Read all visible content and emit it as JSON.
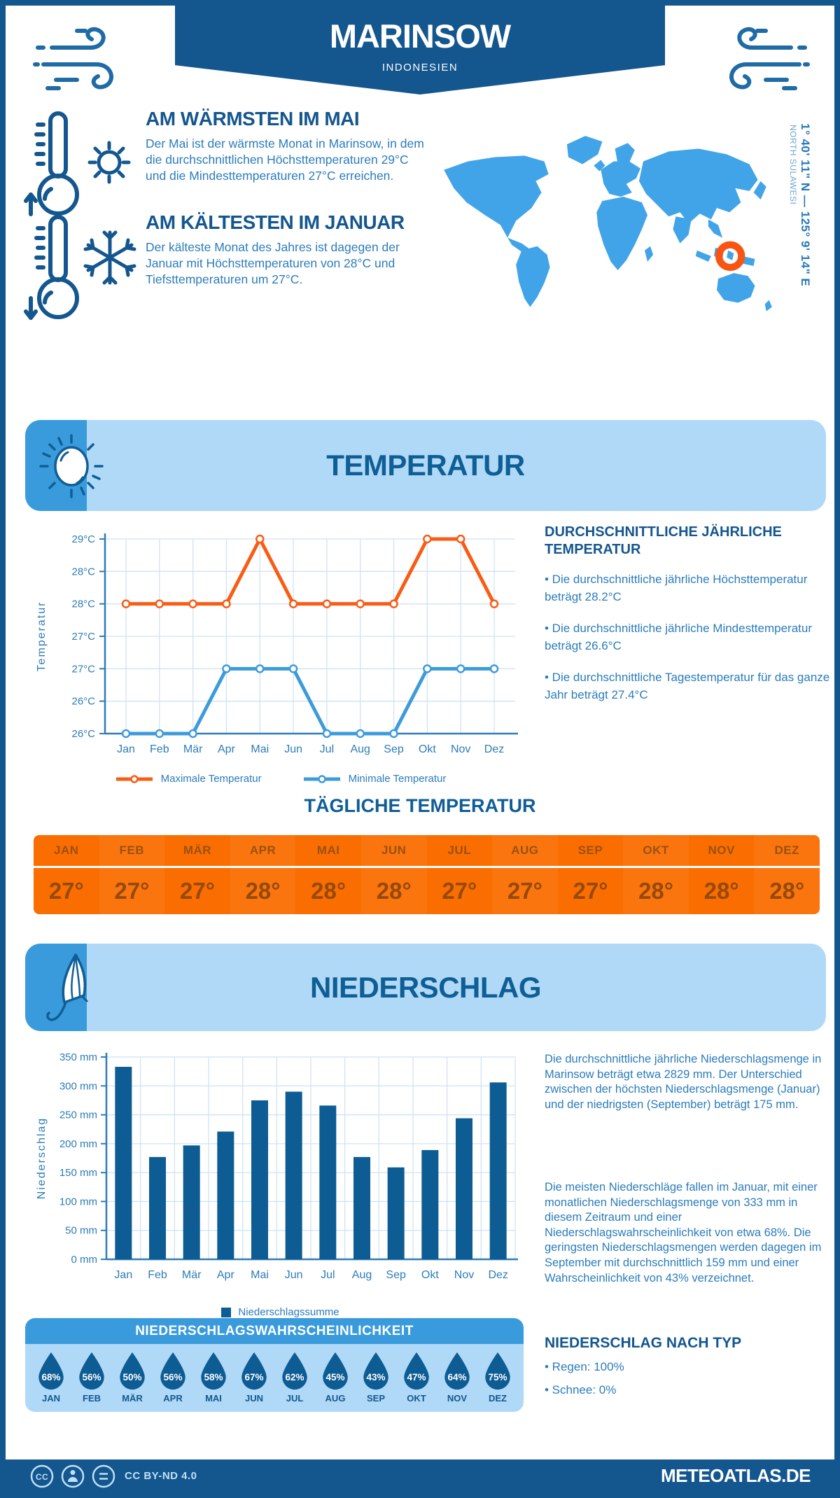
{
  "header": {
    "title": "MARINSOW",
    "subtitle": "INDONESIEN"
  },
  "warmest": {
    "heading": "AM WÄRMSTEN IM MAI",
    "text": "Der Mai ist der wärmste Monat in Marinsow, in dem die durchschnittlichen Höchsttemperaturen 29°C und die Mindesttemperaturen 27°C erreichen."
  },
  "coldest": {
    "heading": "AM KÄLTESTEN IM JANUAR",
    "text": "Der kälteste Monat des Jahres ist dagegen der Januar mit Höchsttemperaturen von 28°C und Tiefsttemperaturen um 27°C."
  },
  "map": {
    "coordinates": "1° 40' 11\" N — 125° 9' 14\" E",
    "region": "NORTH SULAWESI",
    "marker_color": "#F85513",
    "land_color": "#42A4E8"
  },
  "temperature_section": {
    "title": "TEMPERATUR",
    "stats_heading": "DURCHSCHNITTLICHE JÄHRLICHE TEMPERATUR",
    "bullets": [
      "• Die durchschnittliche jährliche Höchsttemperatur beträgt 28.2°C",
      "• Die durchschnittliche jährliche Mindesttemperatur beträgt 26.6°C",
      "• Die durchschnittliche Tagestemperatur für das ganze Jahr beträgt 27.4°C"
    ],
    "daily_heading": "TÄGLICHE TEMPERATUR",
    "daily": {
      "months": [
        "JAN",
        "FEB",
        "MÄR",
        "APR",
        "MAI",
        "JUN",
        "JUL",
        "AUG",
        "SEP",
        "OKT",
        "NOV",
        "DEZ"
      ],
      "values": [
        "27°",
        "27°",
        "27°",
        "28°",
        "28°",
        "28°",
        "27°",
        "27°",
        "27°",
        "28°",
        "28°",
        "28°"
      ]
    }
  },
  "precipitation_section": {
    "title": "NIEDERSCHLAG",
    "paragraph1": "Die durchschnittliche jährliche Niederschlagsmenge in Marinsow beträgt etwa 2829 mm. Der Unterschied zwischen der höchsten Niederschlagsmenge (Januar) und der niedrigsten (September) beträgt 175 mm.",
    "paragraph2": "Die meisten Niederschläge fallen im Januar, mit einer monatlichen Niederschlagsmenge von 333 mm in diesem Zeitraum und einer Niederschlagswahrscheinlichkeit von etwa 68%. Die geringsten Niederschlagsmengen werden dagegen im September mit durchschnittlich 159 mm und einer Wahrscheinlichkeit von 43% verzeichnet.",
    "type_heading": "NIEDERSCHLAG NACH TYP",
    "type_bullets": [
      "• Regen: 100%",
      "• Schnee: 0%"
    ],
    "probability": {
      "title": "NIEDERSCHLAGSWAHRSCHEINLICHKEIT",
      "months": [
        "JAN",
        "FEB",
        "MÄR",
        "APR",
        "MAI",
        "JUN",
        "JUL",
        "AUG",
        "SEP",
        "OKT",
        "NOV",
        "DEZ"
      ],
      "values": [
        "68%",
        "56%",
        "50%",
        "56%",
        "58%",
        "67%",
        "62%",
        "45%",
        "43%",
        "47%",
        "64%",
        "75%"
      ]
    }
  },
  "footer": {
    "license": "CC BY-ND 4.0",
    "brand": "METEOATLAS.DE"
  },
  "chart_data": [
    {
      "type": "line",
      "title": "Temperatur Monatsverlauf",
      "categories": [
        "Jan",
        "Feb",
        "Mär",
        "Apr",
        "Mai",
        "Jun",
        "Jul",
        "Aug",
        "Sep",
        "Okt",
        "Nov",
        "Dez"
      ],
      "series": [
        {
          "name": "Maximale Temperatur",
          "color": "#F95C14",
          "values": [
            28,
            28,
            28,
            28,
            29,
            28,
            28,
            28,
            28,
            29,
            29,
            28
          ]
        },
        {
          "name": "Minimale Temperatur",
          "color": "#3D9BDC",
          "values": [
            26,
            26,
            26,
            27,
            27,
            27,
            26,
            26,
            26,
            27,
            27,
            27
          ]
        }
      ],
      "xlabel": "",
      "ylabel": "Temperatur",
      "ylim": [
        26,
        29
      ],
      "y_ticks": [
        29,
        28.5,
        28,
        27.5,
        27,
        26.5,
        26
      ],
      "y_tick_labels": [
        "29°C",
        "28°C",
        "28°C",
        "27°C",
        "27°C",
        "26°C",
        "26°C"
      ],
      "grid": true,
      "legend_position": "bottom"
    },
    {
      "type": "bar",
      "title": "Niederschlagssumme Monatsverlauf",
      "categories": [
        "Jan",
        "Feb",
        "Mär",
        "Apr",
        "Mai",
        "Jun",
        "Jul",
        "Aug",
        "Sep",
        "Okt",
        "Nov",
        "Dez"
      ],
      "series": [
        {
          "name": "Niederschlagssumme",
          "color": "#0E5C94",
          "values": [
            333,
            177,
            197,
            221,
            275,
            290,
            266,
            177,
            159,
            189,
            244,
            306
          ]
        }
      ],
      "xlabel": "",
      "ylabel": "Niederschlag",
      "ylim": [
        0,
        350
      ],
      "y_ticks": [
        350,
        300,
        250,
        200,
        150,
        100,
        50,
        0
      ],
      "y_tick_labels": [
        "350 mm",
        "300 mm",
        "250 mm",
        "200 mm",
        "150 mm",
        "100 mm",
        "50 mm",
        "0 mm"
      ],
      "grid": true,
      "legend_position": "bottom"
    }
  ]
}
